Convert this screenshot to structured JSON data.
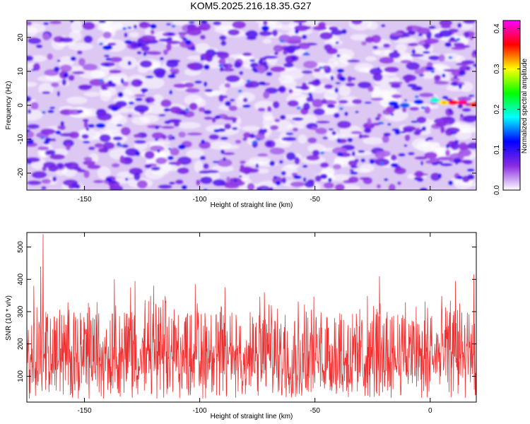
{
  "title": "KOM5.2025.216.18.35.G27",
  "chart_data": [
    {
      "type": "heatmap",
      "xlabel": "Height of straight line (km)",
      "ylabel": "Frequency (Hz)",
      "xlim": [
        -175,
        20
      ],
      "ylim": [
        -25,
        25
      ],
      "xticks": [
        -150,
        -100,
        -50,
        0
      ],
      "yticks": [
        -20,
        -10,
        0,
        10,
        20
      ],
      "grid": false,
      "colorbar": {
        "label": "Normalized spectral amplitude",
        "range": [
          0.0,
          0.42
        ],
        "ticks": [
          0.0,
          0.1,
          0.2,
          0.3,
          0.4
        ],
        "colors": [
          "#ffffff",
          "#8a2be2",
          "#0000ff",
          "#00ffff",
          "#00ff00",
          "#ffff00",
          "#ff0000",
          "#ff00ff"
        ]
      },
      "features": [
        {
          "x": -143,
          "y": -6,
          "value": 0.12
        },
        {
          "x": -140,
          "y": 17,
          "value": 0.09
        },
        {
          "x": -16,
          "y": 0.5,
          "value": 0.12
        },
        {
          "x": -11,
          "y": 0,
          "value": 0.15
        },
        {
          "x": -5,
          "y": 1,
          "value": 0.12
        },
        {
          "x": 2,
          "y": 1.5,
          "value": 0.2
        },
        {
          "x": 6,
          "y": 0.8,
          "value": 0.32
        },
        {
          "x": 10,
          "y": 0.8,
          "value": 0.38
        },
        {
          "x": 14,
          "y": 0.8,
          "value": 0.4
        },
        {
          "x": 19,
          "y": 0.2,
          "value": 0.36
        }
      ]
    },
    {
      "type": "line",
      "xlabel": "Height of straight line (km)",
      "ylabel": "SNR (10 * v/v)",
      "xlim": [
        -175,
        20
      ],
      "ylim": [
        20,
        545
      ],
      "xticks": [
        -150,
        -100,
        -50,
        0
      ],
      "yticks": [
        100,
        200,
        300,
        400,
        500
      ],
      "grid": false,
      "series": [
        {
          "color": "#f03030",
          "baseline": 150,
          "noise_span": [
            30,
            300
          ],
          "peaks": [
            {
              "x": -168,
              "y": 540
            },
            {
              "x": -172,
              "y": 380
            },
            {
              "x": -169,
              "y": 440
            },
            {
              "x": -128,
              "y": 395
            },
            {
              "x": -130,
              "y": 375
            },
            {
              "x": -137,
              "y": 400
            },
            {
              "x": -120,
              "y": 380
            },
            {
              "x": -102,
              "y": 385
            },
            {
              "x": -89,
              "y": 375
            },
            {
              "x": -72,
              "y": 360
            },
            {
              "x": -22,
              "y": 410
            },
            {
              "x": 19,
              "y": 415
            },
            {
              "x": 11,
              "y": 395
            }
          ]
        }
      ]
    }
  ]
}
